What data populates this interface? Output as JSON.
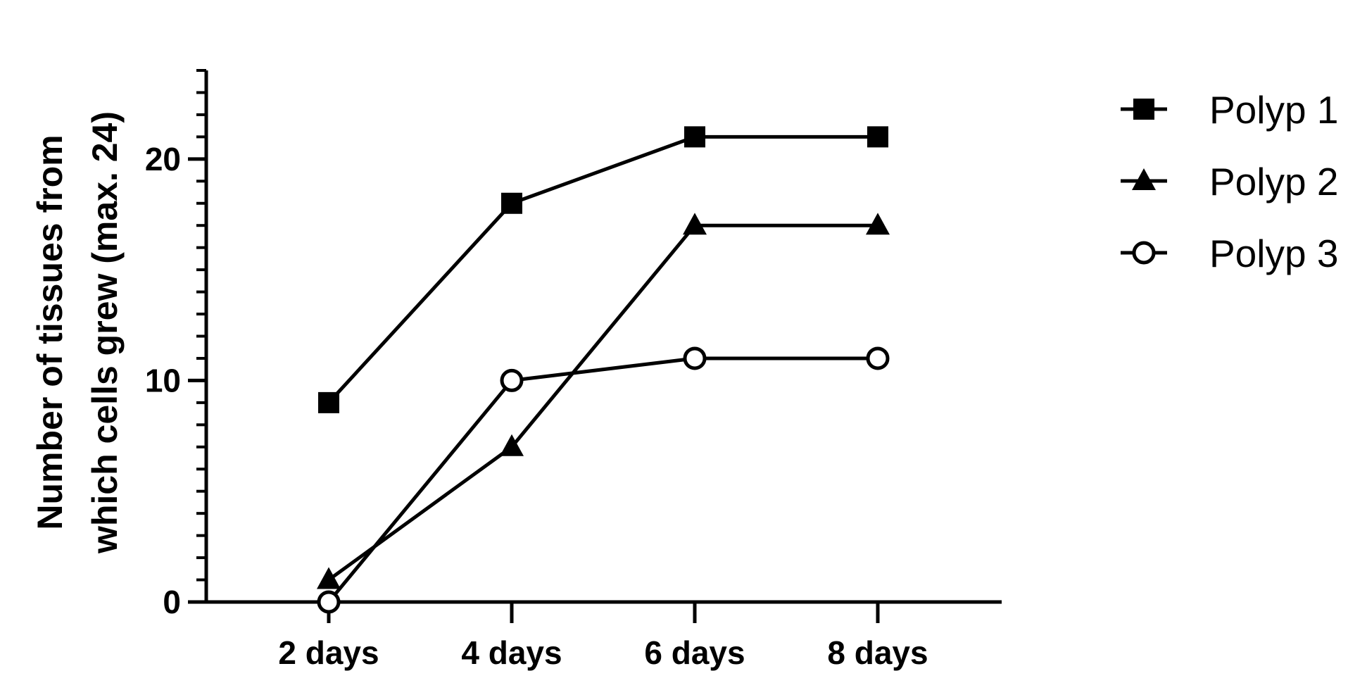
{
  "chart_data": {
    "type": "line",
    "categories": [
      "2 days",
      "4 days",
      "6 days",
      "8 days"
    ],
    "series": [
      {
        "name": "Polyp 1",
        "marker": "square",
        "values": [
          9,
          18,
          21,
          21
        ]
      },
      {
        "name": "Polyp 2",
        "marker": "triangle",
        "values": [
          1,
          7,
          17,
          17
        ]
      },
      {
        "name": "Polyp 3",
        "marker": "open-circle",
        "values": [
          0,
          10,
          11,
          11
        ]
      }
    ],
    "ylabel_lines": [
      "Number of tissues from",
      "which cells grew (max. 24)"
    ],
    "ylim": [
      0,
      24
    ],
    "yticks": [
      0,
      10,
      20
    ],
    "grid": false,
    "legend_position": "top-right",
    "line_color": "#000000"
  }
}
